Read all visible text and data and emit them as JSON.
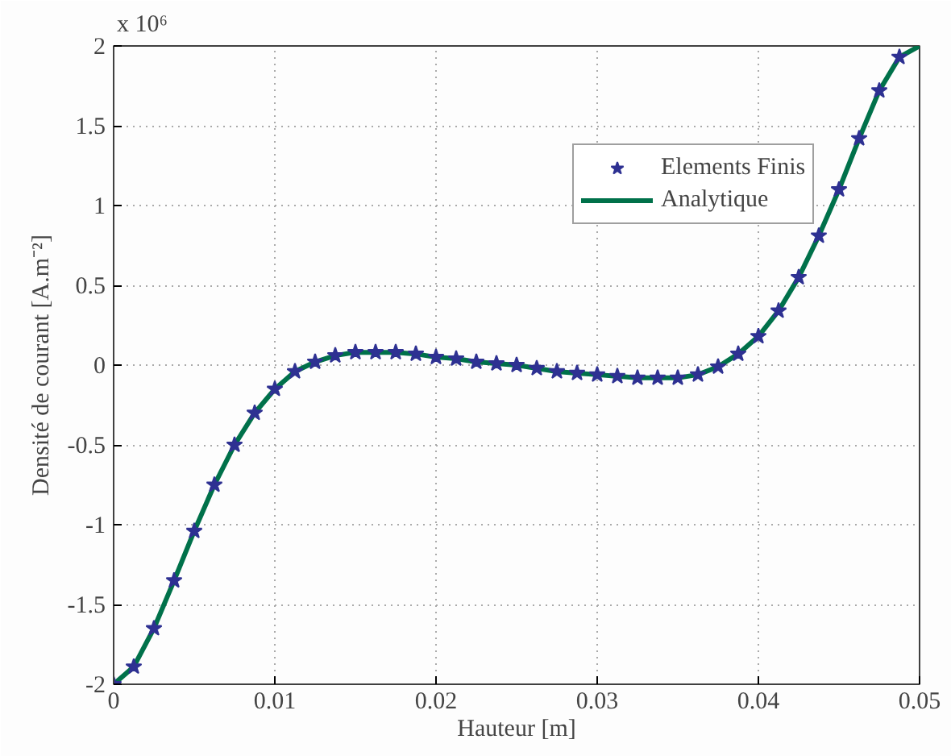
{
  "chart_data": {
    "type": "scatter",
    "xlabel": "Hauteur [m]",
    "ylabel": "Densité de courant [A.m⁻²]",
    "annotations": [
      "x 10⁶"
    ],
    "xlim": [
      0,
      0.05
    ],
    "xticks": [
      0,
      0.01,
      0.02,
      0.03,
      0.04,
      0.05
    ],
    "ylim": [
      -2,
      2
    ],
    "yticks": [
      -2,
      -1.5,
      -1,
      -0.5,
      0,
      0.5,
      1,
      1.5,
      2
    ],
    "grid": true,
    "legend": "top right",
    "series": [
      {
        "name": "Elements Finis",
        "marker": "star",
        "color": "#2e3192",
        "x": [
          0,
          0.00125,
          0.0025,
          0.00375,
          0.005,
          0.00625,
          0.0075,
          0.00875,
          0.01,
          0.01125,
          0.0125,
          0.01375,
          0.015,
          0.01625,
          0.0175,
          0.01875,
          0.02,
          0.02125,
          0.0225,
          0.02375,
          0.025,
          0.02625,
          0.0275,
          0.02875,
          0.03,
          0.03125,
          0.0325,
          0.03375,
          0.035,
          0.03625,
          0.0375,
          0.03875,
          0.04,
          0.04125,
          0.0425,
          0.04375,
          0.045,
          0.04625,
          0.0475,
          0.04875
        ],
        "values": [
          -2.0,
          -1.89,
          -1.65,
          -1.35,
          -1.04,
          -0.75,
          -0.5,
          -0.3,
          -0.15,
          -0.04,
          0.02,
          0.06,
          0.08,
          0.08,
          0.08,
          0.07,
          0.05,
          0.04,
          0.02,
          0.01,
          0.0,
          -0.02,
          -0.04,
          -0.05,
          -0.06,
          -0.07,
          -0.08,
          -0.08,
          -0.08,
          -0.06,
          -0.01,
          0.07,
          0.18,
          0.34,
          0.55,
          0.81,
          1.1,
          1.42,
          1.72,
          1.93
        ]
      },
      {
        "name": "Analytique",
        "type": "line",
        "line_style": "solid",
        "color": "#00714a",
        "x": [
          0,
          0.00125,
          0.0025,
          0.00375,
          0.005,
          0.00625,
          0.0075,
          0.00875,
          0.01,
          0.01125,
          0.0125,
          0.01375,
          0.015,
          0.01625,
          0.0175,
          0.01875,
          0.02,
          0.02125,
          0.0225,
          0.02375,
          0.025,
          0.02625,
          0.0275,
          0.02875,
          0.03,
          0.03125,
          0.0325,
          0.03375,
          0.035,
          0.03625,
          0.0375,
          0.03875,
          0.04,
          0.04125,
          0.0425,
          0.04375,
          0.045,
          0.04625,
          0.0475,
          0.04875,
          0.05
        ],
        "values": [
          -2.0,
          -1.89,
          -1.65,
          -1.35,
          -1.04,
          -0.75,
          -0.5,
          -0.3,
          -0.15,
          -0.04,
          0.02,
          0.06,
          0.08,
          0.08,
          0.08,
          0.07,
          0.05,
          0.04,
          0.02,
          0.01,
          0.0,
          -0.02,
          -0.04,
          -0.05,
          -0.06,
          -0.07,
          -0.08,
          -0.08,
          -0.08,
          -0.06,
          -0.01,
          0.07,
          0.18,
          0.34,
          0.55,
          0.81,
          1.1,
          1.42,
          1.72,
          1.93,
          2.0
        ]
      }
    ]
  }
}
